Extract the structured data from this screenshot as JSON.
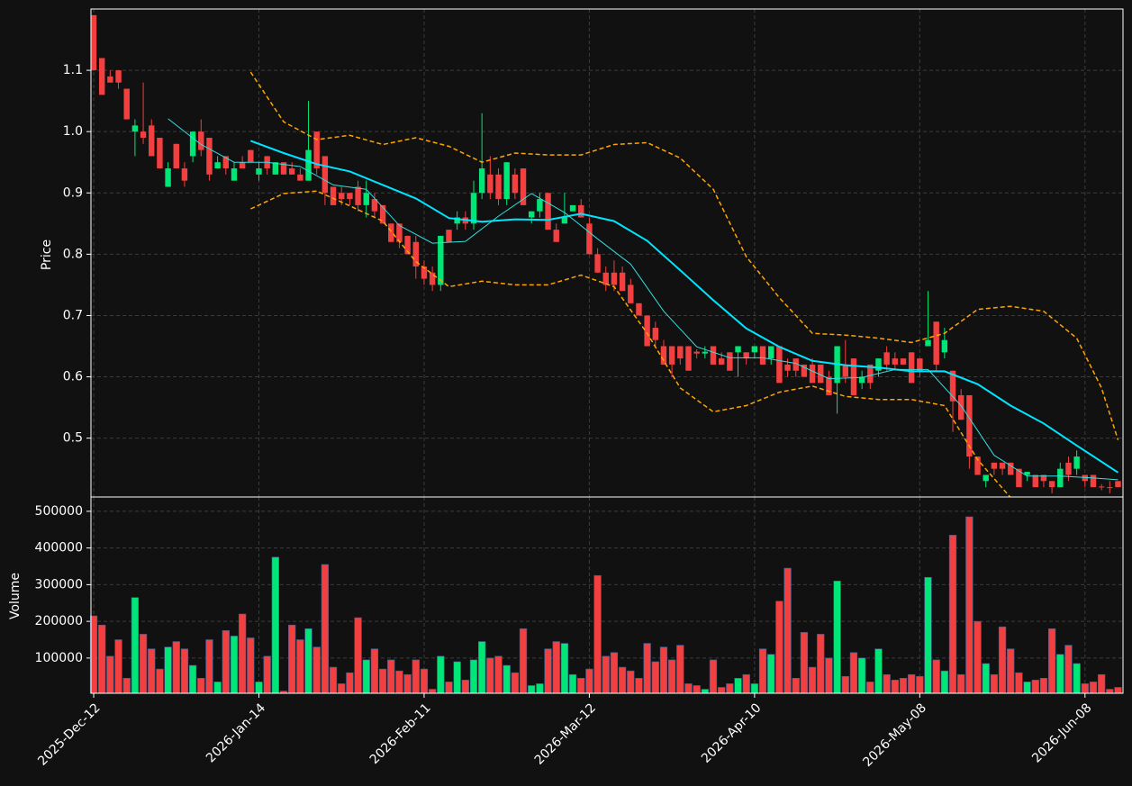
{
  "chart_data": [
    {
      "type": "candlestick",
      "ylabel": "Price",
      "up_color": "#00e676",
      "down_color": "#f23f3f",
      "grid": true,
      "xlim": [
        -0.33,
        124.6
      ],
      "ylim": [
        0.404,
        1.2
      ],
      "yticks": [
        0.5,
        0.6,
        0.7,
        0.8,
        0.9,
        {
          "value": 1,
          "label": "1.0"
        },
        1.1
      ],
      "open": [
        1.19,
        1.12,
        1.09,
        1.1,
        1.07,
        1.0,
        1.0,
        1.01,
        0.99,
        0.91,
        0.98,
        0.94,
        0.96,
        1.0,
        0.99,
        0.94,
        0.96,
        0.92,
        0.95,
        0.97,
        0.93,
        0.96,
        0.93,
        0.95,
        0.94,
        0.93,
        0.92,
        1.0,
        0.96,
        0.91,
        0.9,
        0.9,
        0.91,
        0.88,
        0.89,
        0.88,
        0.85,
        0.85,
        0.83,
        0.82,
        0.78,
        0.77,
        0.75,
        0.84,
        0.85,
        0.86,
        0.85,
        0.9,
        0.93,
        0.93,
        0.89,
        0.93,
        0.94,
        0.86,
        0.87,
        0.9,
        0.84,
        0.85,
        0.87,
        0.88,
        0.85,
        0.8,
        0.77,
        0.77,
        0.77,
        0.75,
        0.72,
        0.7,
        0.68,
        0.65,
        0.65,
        0.65,
        0.65,
        0.641,
        0.638,
        0.65,
        0.63,
        0.64,
        0.64,
        0.64,
        0.64,
        0.65,
        0.63,
        0.65,
        0.62,
        0.63,
        0.62,
        0.62,
        0.62,
        0.6,
        0.59,
        0.62,
        0.63,
        0.59,
        0.62,
        0.61,
        0.64,
        0.63,
        0.63,
        0.64,
        0.63,
        0.65,
        0.69,
        0.64,
        0.61,
        0.57,
        0.57,
        0.47,
        0.43,
        0.46,
        0.46,
        0.46,
        0.45,
        0.44,
        0.44,
        0.44,
        0.43,
        0.42,
        0.46,
        0.45,
        0.44,
        0.44,
        0.421,
        0.42,
        0.43
      ],
      "high": [
        1.19,
        1.12,
        1.1,
        1.1,
        1.07,
        1.02,
        1.08,
        1.02,
        0.99,
        0.95,
        0.98,
        0.95,
        1.0,
        1.02,
        0.99,
        0.96,
        0.96,
        0.95,
        0.96,
        0.97,
        0.95,
        0.96,
        0.95,
        0.95,
        0.95,
        0.94,
        1.05,
        1.0,
        0.96,
        0.91,
        0.91,
        0.9,
        0.92,
        0.92,
        0.9,
        0.88,
        0.85,
        0.85,
        0.83,
        0.83,
        0.79,
        0.78,
        0.83,
        0.84,
        0.87,
        0.87,
        0.92,
        1.03,
        0.96,
        0.94,
        0.95,
        0.94,
        0.94,
        0.87,
        0.9,
        0.9,
        0.85,
        0.9,
        0.88,
        0.89,
        0.86,
        0.81,
        0.78,
        0.79,
        0.78,
        0.76,
        0.72,
        0.7,
        0.69,
        0.66,
        0.65,
        0.65,
        0.65,
        0.645,
        0.65,
        0.65,
        0.64,
        0.64,
        0.65,
        0.64,
        0.65,
        0.65,
        0.65,
        0.65,
        0.63,
        0.63,
        0.62,
        0.63,
        0.62,
        0.61,
        0.65,
        0.66,
        0.63,
        0.61,
        0.62,
        0.63,
        0.65,
        0.64,
        0.63,
        0.64,
        0.63,
        0.74,
        0.69,
        0.68,
        0.61,
        0.58,
        0.57,
        0.47,
        0.44,
        0.46,
        0.46,
        0.46,
        0.45,
        0.445,
        0.44,
        0.44,
        0.43,
        0.46,
        0.47,
        0.48,
        0.44,
        0.44,
        0.425,
        0.43,
        0.43
      ],
      "low": [
        1.1,
        1.06,
        1.08,
        1.07,
        1.02,
        0.96,
        0.98,
        0.96,
        0.94,
        0.91,
        0.94,
        0.91,
        0.95,
        0.96,
        0.92,
        0.94,
        0.93,
        0.92,
        0.94,
        0.95,
        0.92,
        0.93,
        0.93,
        0.93,
        0.93,
        0.92,
        0.92,
        0.93,
        0.88,
        0.88,
        0.88,
        0.88,
        0.87,
        0.86,
        0.86,
        0.85,
        0.82,
        0.81,
        0.8,
        0.76,
        0.75,
        0.74,
        0.74,
        0.82,
        0.84,
        0.84,
        0.84,
        0.89,
        0.89,
        0.88,
        0.88,
        0.89,
        0.88,
        0.85,
        0.86,
        0.84,
        0.82,
        0.85,
        0.87,
        0.86,
        0.8,
        0.77,
        0.74,
        0.74,
        0.74,
        0.72,
        0.7,
        0.65,
        0.65,
        0.62,
        0.6,
        0.62,
        0.61,
        0.63,
        0.63,
        0.62,
        0.62,
        0.61,
        0.6,
        0.62,
        0.63,
        0.62,
        0.62,
        0.59,
        0.6,
        0.6,
        0.6,
        0.59,
        0.59,
        0.57,
        0.54,
        0.59,
        0.57,
        0.58,
        0.58,
        0.6,
        0.61,
        0.61,
        0.62,
        0.59,
        0.6,
        0.65,
        0.61,
        0.63,
        0.51,
        0.53,
        0.45,
        0.44,
        0.42,
        0.44,
        0.44,
        0.44,
        0.42,
        0.43,
        0.42,
        0.42,
        0.41,
        0.42,
        0.43,
        0.44,
        0.42,
        0.42,
        0.415,
        0.41,
        0.42
      ],
      "close": [
        1.1,
        1.06,
        1.08,
        1.08,
        1.02,
        1.01,
        0.99,
        0.96,
        0.94,
        0.94,
        0.94,
        0.92,
        1.0,
        0.97,
        0.93,
        0.95,
        0.94,
        0.94,
        0.94,
        0.95,
        0.94,
        0.94,
        0.95,
        0.93,
        0.93,
        0.92,
        0.97,
        0.94,
        0.9,
        0.88,
        0.89,
        0.89,
        0.88,
        0.9,
        0.87,
        0.85,
        0.82,
        0.82,
        0.8,
        0.78,
        0.76,
        0.75,
        0.83,
        0.82,
        0.86,
        0.85,
        0.9,
        0.94,
        0.9,
        0.89,
        0.95,
        0.9,
        0.88,
        0.87,
        0.89,
        0.84,
        0.82,
        0.86,
        0.88,
        0.86,
        0.8,
        0.77,
        0.75,
        0.75,
        0.74,
        0.72,
        0.7,
        0.65,
        0.66,
        0.62,
        0.62,
        0.63,
        0.61,
        0.638,
        0.641,
        0.62,
        0.62,
        0.61,
        0.65,
        0.63,
        0.65,
        0.62,
        0.65,
        0.59,
        0.61,
        0.61,
        0.6,
        0.59,
        0.59,
        0.57,
        0.65,
        0.6,
        0.57,
        0.6,
        0.59,
        0.63,
        0.62,
        0.62,
        0.62,
        0.59,
        0.61,
        0.66,
        0.62,
        0.66,
        0.56,
        0.53,
        0.47,
        0.44,
        0.44,
        0.45,
        0.45,
        0.44,
        0.42,
        0.445,
        0.42,
        0.43,
        0.42,
        0.45,
        0.44,
        0.47,
        0.43,
        0.42,
        0.42,
        0.419,
        0.42
      ],
      "series": [
        {
          "color": "#00e5ff",
          "linewidth": 2,
          "linestyle": "solid",
          "x": [
            19,
            23,
            27,
            31,
            35,
            39,
            43,
            47,
            51,
            55,
            59,
            63,
            67,
            71,
            75,
            79,
            83,
            87,
            91,
            95,
            99,
            103,
            107,
            111,
            115,
            119,
            124
          ],
          "values": [
            0.985,
            0.965,
            0.947,
            0.935,
            0.913,
            0.891,
            0.859,
            0.853,
            0.857,
            0.856,
            0.866,
            0.854,
            0.822,
            0.774,
            0.725,
            0.679,
            0.649,
            0.626,
            0.619,
            0.615,
            0.609,
            0.609,
            0.588,
            0.553,
            0.524,
            0.488,
            0.444
          ]
        },
        {
          "color": "#33e0e0",
          "linewidth": 1,
          "linestyle": "solid",
          "x": [
            9,
            13,
            17,
            21,
            25,
            29,
            33,
            37,
            41,
            45,
            49,
            53,
            57,
            61,
            65,
            69,
            73,
            77,
            81,
            85,
            89,
            93,
            97,
            101,
            105,
            109,
            113,
            117,
            121,
            124
          ],
          "values": [
            1.021,
            0.979,
            0.95,
            0.95,
            0.943,
            0.913,
            0.906,
            0.847,
            0.818,
            0.821,
            0.862,
            0.899,
            0.868,
            0.825,
            0.784,
            0.707,
            0.649,
            0.631,
            0.631,
            0.622,
            0.597,
            0.599,
            0.612,
            0.612,
            0.553,
            0.472,
            0.438,
            0.438,
            0.435,
            0.432
          ]
        },
        {
          "color": "#ffa500",
          "linewidth": 1.5,
          "linestyle": "dashed",
          "x": [
            19,
            23,
            27,
            31,
            35,
            39,
            43,
            47,
            51,
            55,
            59,
            63,
            67,
            71,
            75,
            79,
            83,
            87,
            91,
            95,
            99,
            103,
            107,
            111,
            115,
            119,
            122,
            124
          ],
          "values": [
            1.097,
            1.016,
            0.987,
            0.994,
            0.979,
            0.99,
            0.976,
            0.95,
            0.965,
            0.962,
            0.962,
            0.979,
            0.982,
            0.957,
            0.906,
            0.796,
            0.729,
            0.671,
            0.668,
            0.663,
            0.656,
            0.671,
            0.71,
            0.715,
            0.707,
            0.663,
            0.582,
            0.497
          ]
        },
        {
          "color": "#ffa500",
          "linewidth": 1.5,
          "linestyle": "dashed",
          "x": [
            19,
            23,
            27,
            31,
            35,
            39,
            43,
            47,
            51,
            55,
            59,
            63,
            67,
            71,
            75,
            79,
            83,
            87,
            91,
            95,
            99,
            103,
            107,
            111
          ],
          "values": [
            0.874,
            0.899,
            0.903,
            0.879,
            0.854,
            0.788,
            0.747,
            0.756,
            0.75,
            0.75,
            0.766,
            0.747,
            0.671,
            0.582,
            0.543,
            0.553,
            0.575,
            0.585,
            0.568,
            0.563,
            0.563,
            0.553,
            0.465,
            0.403
          ]
        }
      ]
    },
    {
      "type": "bar",
      "ylabel": "Volume",
      "grid": true,
      "xlim": [
        -0.33,
        124.6
      ],
      "ylim": [
        4000,
        539000
      ],
      "yticks": [
        100000,
        200000,
        300000,
        400000,
        500000
      ],
      "xticks": [
        {
          "value": 0,
          "label": "2025-Dec-12"
        },
        {
          "value": 20,
          "label": "2026-Jan-14"
        },
        {
          "value": 40,
          "label": "2026-Feb-11"
        },
        {
          "value": 60,
          "label": "2026-Mar-12"
        },
        {
          "value": 80,
          "label": "2026-Apr-10"
        },
        {
          "value": 100,
          "label": "2026-May-08"
        },
        {
          "value": 120,
          "label": "2026-Jun-08"
        }
      ],
      "values": [
        215000,
        190000,
        105000,
        150000,
        45000,
        265000,
        165000,
        125000,
        70000,
        130000,
        145000,
        125000,
        80000,
        45000,
        150000,
        35000,
        175000,
        160000,
        220000,
        155000,
        35000,
        105000,
        375000,
        10000,
        190000,
        150000,
        180000,
        130000,
        355000,
        75000,
        30000,
        60000,
        210000,
        95000,
        125000,
        70000,
        95000,
        65000,
        55000,
        95000,
        70000,
        15000,
        105000,
        35000,
        90000,
        40000,
        95000,
        145000,
        100000,
        105000,
        80000,
        60000,
        180000,
        25000,
        30000,
        125000,
        145000,
        140000,
        55000,
        45000,
        70000,
        325000,
        105000,
        115000,
        75000,
        65000,
        45000,
        140000,
        90000,
        130000,
        95000,
        135000,
        30000,
        25000,
        15000,
        95000,
        20000,
        30000,
        45000,
        55000,
        30000,
        125000,
        110000,
        255000,
        345000,
        45000,
        170000,
        75000,
        165000,
        100000,
        310000,
        50000,
        115000,
        100000,
        35000,
        125000,
        55000,
        40000,
        45000,
        55000,
        50000,
        320000,
        95000,
        65000,
        435000,
        55000,
        485000,
        200000,
        85000,
        55000,
        185000,
        125000,
        60000,
        35000,
        40000,
        45000,
        180000,
        110000,
        135000,
        85000,
        30000,
        35000,
        55000,
        15000,
        20000
      ]
    }
  ]
}
